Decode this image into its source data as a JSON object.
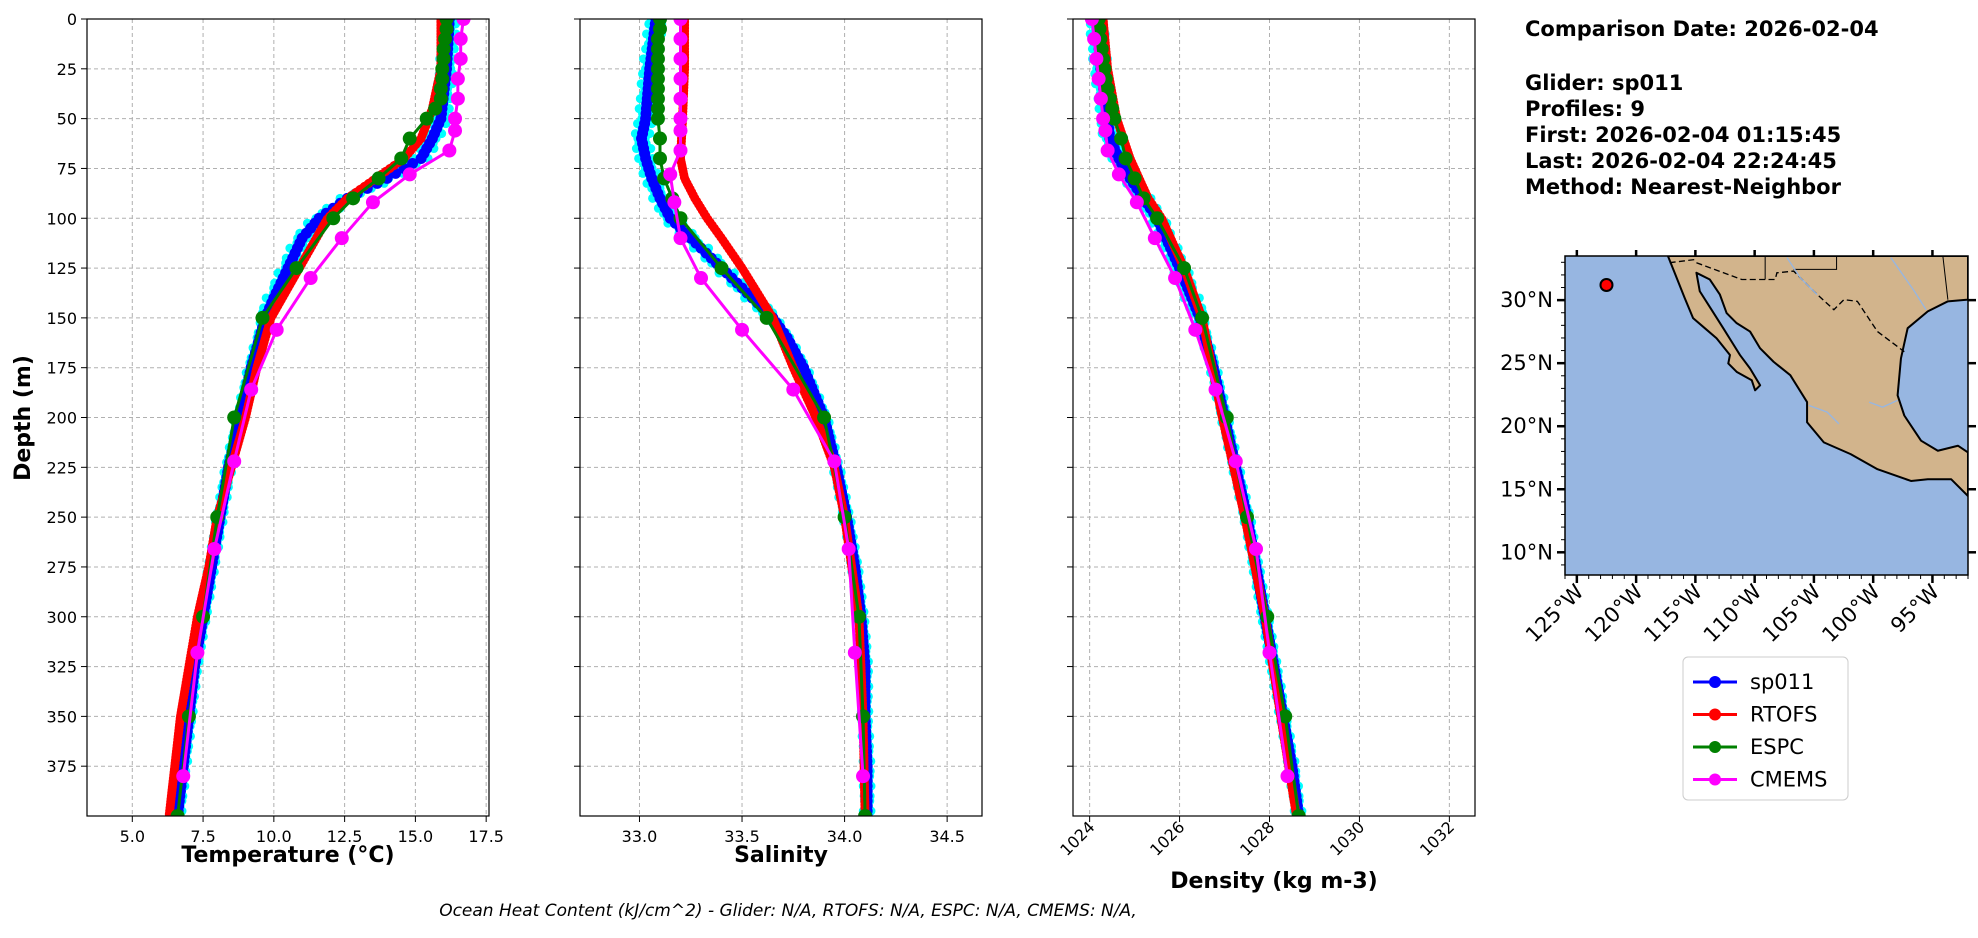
{
  "chart_data": {
    "type": "line",
    "y_shared": {
      "label": "Depth (m)",
      "range": [
        0,
        400
      ],
      "inverted": true,
      "ticks": [
        0,
        25,
        50,
        75,
        100,
        125,
        150,
        175,
        200,
        225,
        250,
        275,
        300,
        325,
        350,
        375
      ]
    },
    "grid": true,
    "colors": {
      "sp011": "#0000ff",
      "RTOFS": "#ff0000",
      "ESPC": "#008000",
      "CMEMS": "#ff00ff",
      "glider_profiles": "#00ffff"
    },
    "panels": [
      {
        "xlabel": "Temperature (°C)",
        "xlim": [
          3.4,
          17.6
        ],
        "ticks": [
          5.0,
          7.5,
          10.0,
          12.5,
          15.0,
          17.5
        ],
        "tick_labels": [
          "5.0",
          "7.5",
          "10.0",
          "12.5",
          "15.0",
          "17.5"
        ],
        "series": [
          {
            "name": "sp011",
            "depth": [
              0,
              25,
              50,
              60,
              70,
              80,
              90,
              100,
              110,
              125,
              140,
              150,
              175,
              200,
              225,
              250,
              275,
              300,
              325,
              350,
              375,
              400
            ],
            "values": [
              16.2,
              16.1,
              15.9,
              15.6,
              15.2,
              14.0,
              12.6,
              11.6,
              11.0,
              10.5,
              10.0,
              9.7,
              9.2,
              8.8,
              8.4,
              8.1,
              7.8,
              7.5,
              7.2,
              7.0,
              6.8,
              6.6
            ]
          },
          {
            "name": "RTOFS",
            "depth": [
              0,
              25,
              45,
              60,
              70,
              80,
              90,
              100,
              125,
              150,
              175,
              200,
              225,
              250,
              275,
              300,
              325,
              350,
              375,
              400
            ],
            "values": [
              15.9,
              15.9,
              15.6,
              15.2,
              14.6,
              13.6,
              12.6,
              11.9,
              10.9,
              9.9,
              9.4,
              9.0,
              8.5,
              8.0,
              7.7,
              7.3,
              7.0,
              6.7,
              6.5,
              6.3
            ]
          },
          {
            "name": "ESPC",
            "depth": [
              0,
              5,
              10,
              15,
              20,
              25,
              30,
              35,
              40,
              45,
              50,
              60,
              70,
              80,
              90,
              100,
              125,
              150,
              200,
              250,
              300,
              350,
              400
            ],
            "values": [
              16.1,
              16.1,
              16.05,
              16.0,
              16.0,
              15.95,
              15.95,
              15.9,
              15.9,
              15.7,
              15.4,
              14.8,
              14.5,
              13.7,
              12.8,
              12.1,
              10.8,
              9.6,
              8.6,
              8.0,
              7.5,
              7.0,
              6.6
            ]
          },
          {
            "name": "CMEMS",
            "depth": [
              0,
              10,
              20,
              30,
              40,
              50,
              56,
              66,
              78,
              92,
              110,
              130,
              156,
              186,
              222,
              266,
              318,
              380
            ],
            "values": [
              16.7,
              16.6,
              16.6,
              16.5,
              16.5,
              16.4,
              16.4,
              16.2,
              14.8,
              13.5,
              12.4,
              11.3,
              10.1,
              9.2,
              8.6,
              7.9,
              7.3,
              6.8
            ]
          }
        ]
      },
      {
        "xlabel": "Salinity",
        "xlim": [
          32.71,
          34.67
        ],
        "ticks": [
          33.0,
          33.5,
          34.0,
          34.5
        ],
        "tick_labels": [
          "33.0",
          "33.5",
          "34.0",
          "34.5"
        ],
        "series": [
          {
            "name": "sp011",
            "depth": [
              0,
              25,
              50,
              60,
              70,
              80,
              90,
              100,
              110,
              120,
              130,
              140,
              150,
              160,
              175,
              200,
              225,
              250,
              275,
              300,
              325,
              350,
              375,
              400
            ],
            "values": [
              33.08,
              33.05,
              33.03,
              33.01,
              33.03,
              33.06,
              33.1,
              33.15,
              33.25,
              33.35,
              33.45,
              33.55,
              33.65,
              33.72,
              33.8,
              33.9,
              33.96,
              34.01,
              34.05,
              34.08,
              34.1,
              34.1,
              34.11,
              34.11
            ]
          },
          {
            "name": "RTOFS",
            "depth": [
              0,
              25,
              50,
              70,
              80,
              90,
              100,
              110,
              125,
              150,
              175,
              200,
              225,
              250,
              300,
              350,
              400
            ],
            "values": [
              33.22,
              33.22,
              33.21,
              33.2,
              33.22,
              33.27,
              33.33,
              33.4,
              33.5,
              33.65,
              33.75,
              33.86,
              33.95,
              34.0,
              34.07,
              34.09,
              34.1
            ]
          },
          {
            "name": "ESPC",
            "depth": [
              0,
              5,
              10,
              15,
              20,
              25,
              30,
              35,
              40,
              45,
              50,
              60,
              70,
              80,
              90,
              100,
              125,
              150,
              200,
              250,
              300,
              350,
              400
            ],
            "values": [
              33.1,
              33.1,
              33.09,
              33.09,
              33.09,
              33.09,
              33.09,
              33.09,
              33.09,
              33.09,
              33.09,
              33.1,
              33.1,
              33.12,
              33.16,
              33.2,
              33.4,
              33.62,
              33.9,
              34.0,
              34.07,
              34.09,
              34.1
            ]
          },
          {
            "name": "CMEMS",
            "depth": [
              0,
              10,
              20,
              30,
              40,
              50,
              56,
              66,
              78,
              92,
              110,
              130,
              156,
              186,
              222,
              266,
              318,
              380
            ],
            "values": [
              33.2,
              33.2,
              33.2,
              33.2,
              33.2,
              33.2,
              33.2,
              33.2,
              33.15,
              33.17,
              33.2,
              33.3,
              33.5,
              33.75,
              33.95,
              34.02,
              34.05,
              34.09
            ]
          }
        ]
      },
      {
        "xlabel": "Density (kg m-3)",
        "xlim": [
          1023.63,
          1032.57
        ],
        "ticks": [
          1024,
          1026,
          1028,
          1030,
          1032
        ],
        "tick_labels": [
          "1024",
          "1026",
          "1028",
          "1030",
          "1032"
        ],
        "tick_rotation": 45,
        "series": [
          {
            "name": "sp011",
            "depth": [
              0,
              25,
              50,
              60,
              70,
              80,
              90,
              100,
              125,
              150,
              175,
              200,
              225,
              250,
              275,
              300,
              325,
              350,
              375,
              400
            ],
            "values": [
              1024.15,
              1024.25,
              1024.4,
              1024.45,
              1024.65,
              1024.9,
              1025.2,
              1025.5,
              1026.0,
              1026.45,
              1026.75,
              1027.0,
              1027.25,
              1027.5,
              1027.7,
              1027.9,
              1028.1,
              1028.3,
              1028.5,
              1028.65
            ]
          },
          {
            "name": "RTOFS",
            "depth": [
              0,
              25,
              50,
              70,
              90,
              100,
              125,
              150,
              200,
              250,
              300,
              350,
              400
            ],
            "values": [
              1024.3,
              1024.4,
              1024.6,
              1024.9,
              1025.3,
              1025.6,
              1026.1,
              1026.5,
              1026.95,
              1027.45,
              1027.9,
              1028.25,
              1028.6
            ]
          },
          {
            "name": "ESPC",
            "depth": [
              0,
              5,
              10,
              15,
              20,
              25,
              30,
              35,
              40,
              45,
              50,
              60,
              70,
              80,
              90,
              100,
              125,
              150,
              200,
              250,
              300,
              350,
              400
            ],
            "values": [
              1024.2,
              1024.22,
              1024.24,
              1024.27,
              1024.3,
              1024.33,
              1024.36,
              1024.4,
              1024.45,
              1024.5,
              1024.55,
              1024.7,
              1024.8,
              1025.0,
              1025.2,
              1025.5,
              1026.1,
              1026.5,
              1027.05,
              1027.5,
              1027.95,
              1028.35,
              1028.65
            ]
          },
          {
            "name": "CMEMS",
            "depth": [
              0,
              10,
              20,
              30,
              40,
              50,
              56,
              66,
              78,
              92,
              110,
              130,
              156,
              186,
              222,
              266,
              318,
              380
            ],
            "values": [
              1024.05,
              1024.1,
              1024.15,
              1024.2,
              1024.25,
              1024.3,
              1024.35,
              1024.4,
              1024.65,
              1025.05,
              1025.45,
              1025.9,
              1026.35,
              1026.8,
              1027.25,
              1027.7,
              1028.0,
              1028.4
            ]
          }
        ]
      }
    ],
    "legend": {
      "placement": "below-map",
      "entries": [
        "sp011",
        "RTOFS",
        "ESPC",
        "CMEMS"
      ]
    }
  },
  "info": {
    "comparison_date": "Comparison Date: 2026-02-04",
    "glider": "Glider: sp011",
    "profiles": "Profiles: 9",
    "first": "First: 2026-02-04 01:15:45",
    "last": "Last: 2026-02-04 22:24:45",
    "method": "Method: Nearest-Neighbor"
  },
  "map": {
    "lon_range": [
      -126,
      -92
    ],
    "lat_range": [
      8.2,
      33.5
    ],
    "lat_ticks": [
      {
        "value": 30,
        "label": "30°N"
      },
      {
        "value": 25,
        "label": "25°N"
      },
      {
        "value": 20,
        "label": "20°N"
      },
      {
        "value": 15,
        "label": "15°N"
      },
      {
        "value": 10,
        "label": "10°N"
      }
    ],
    "lon_ticks": [
      {
        "value": -125,
        "label": "125°W"
      },
      {
        "value": -120,
        "label": "120°W"
      },
      {
        "value": -115,
        "label": "115°W"
      },
      {
        "value": -110,
        "label": "110°W"
      },
      {
        "value": -105,
        "label": "105°W"
      },
      {
        "value": -100,
        "label": "100°W"
      },
      {
        "value": -95,
        "label": "95°W"
      }
    ],
    "glider_position": {
      "lon": -122.5,
      "lat": 31.2
    },
    "colors": {
      "ocean": "#97b6e1",
      "land": "#d2b48c",
      "marker": "#ff0000"
    }
  },
  "footer": {
    "ohc": "Ocean Heat Content (kJ/cm^2) - Glider: N/A,  RTOFS: N/A,  ESPC: N/A,  CMEMS: N/A,"
  }
}
